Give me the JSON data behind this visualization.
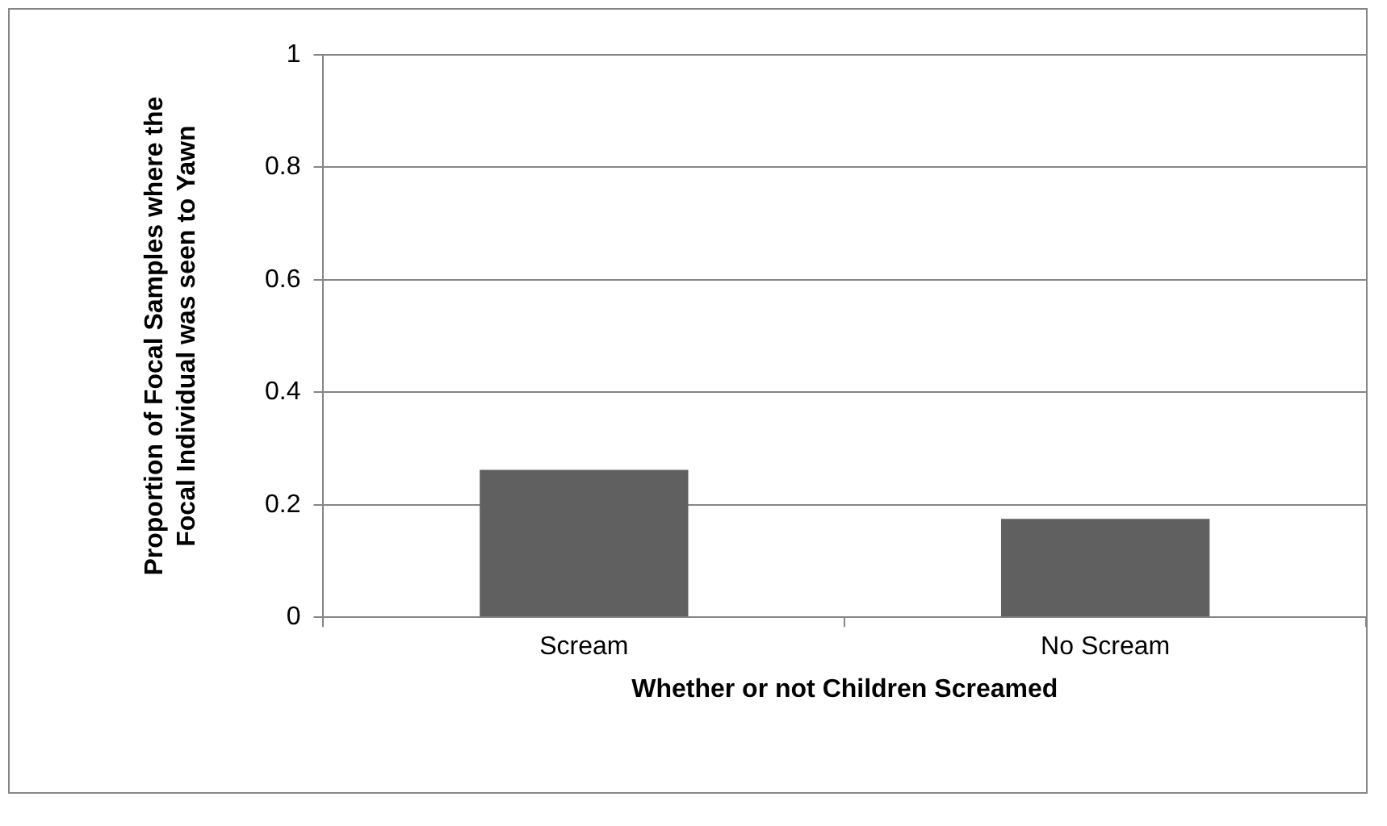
{
  "chart_data": {
    "type": "bar",
    "xlabel": "Whether or not Children Screamed",
    "ylabel": "Proportion of Focal Samples where the Focal Individual was seen to Yawn",
    "categories": [
      "Scream",
      "No Scream"
    ],
    "values": [
      0.262,
      0.175
    ],
    "color": "#606060",
    "ylim": [
      0,
      1
    ],
    "yticks": [
      0,
      0.2,
      0.4,
      0.6,
      0.8,
      1
    ],
    "grid": "y",
    "legend": false
  }
}
